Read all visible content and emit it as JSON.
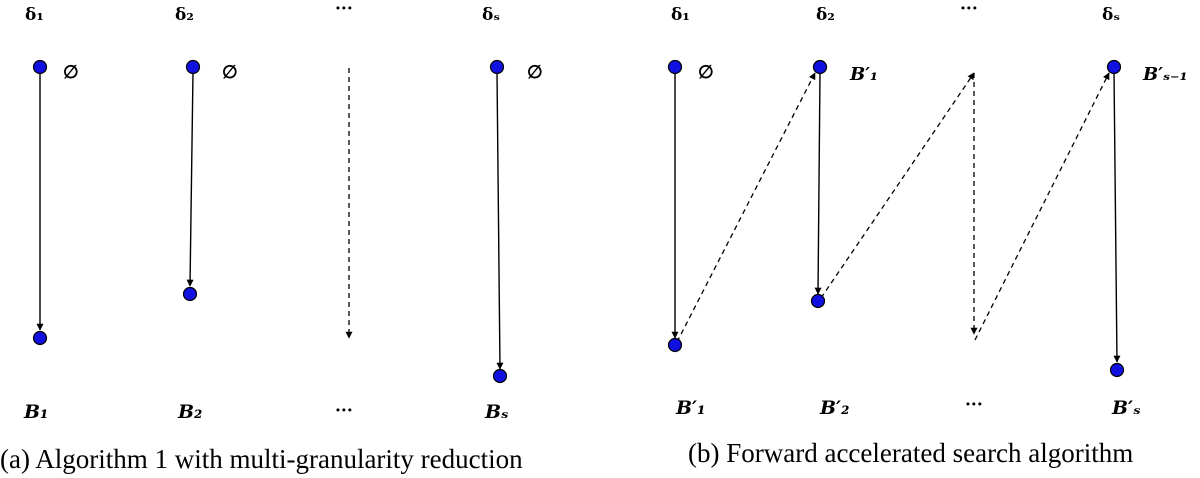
{
  "colors": {
    "node": "#1010e0",
    "line": "#000000"
  },
  "panel_a": {
    "columns": [
      {
        "top_label": "δ₁",
        "start_label": "∅",
        "bottom_label": "B₁"
      },
      {
        "top_label": "δ₂",
        "start_label": "∅",
        "bottom_label": "B₂"
      },
      {
        "top_label": "···",
        "start_label": "",
        "bottom_label": "···"
      },
      {
        "top_label": "δₛ",
        "start_label": "∅",
        "bottom_label": "Bₛ"
      }
    ],
    "caption": "(a) Algorithm 1 with multi-granularity reduction"
  },
  "panel_b": {
    "columns": [
      {
        "top_label": "δ₁",
        "start_label": "∅",
        "bottom_label": "B′₁"
      },
      {
        "top_label": "δ₂",
        "start_label": "B′₁",
        "bottom_label": "B′₂"
      },
      {
        "top_label": "···",
        "start_label": "",
        "bottom_label": "···"
      },
      {
        "top_label": "δₛ",
        "start_label": "B′ₛ₋₁",
        "bottom_label": "B′ₛ"
      }
    ],
    "caption": "(b) Forward accelerated search algorithm"
  }
}
